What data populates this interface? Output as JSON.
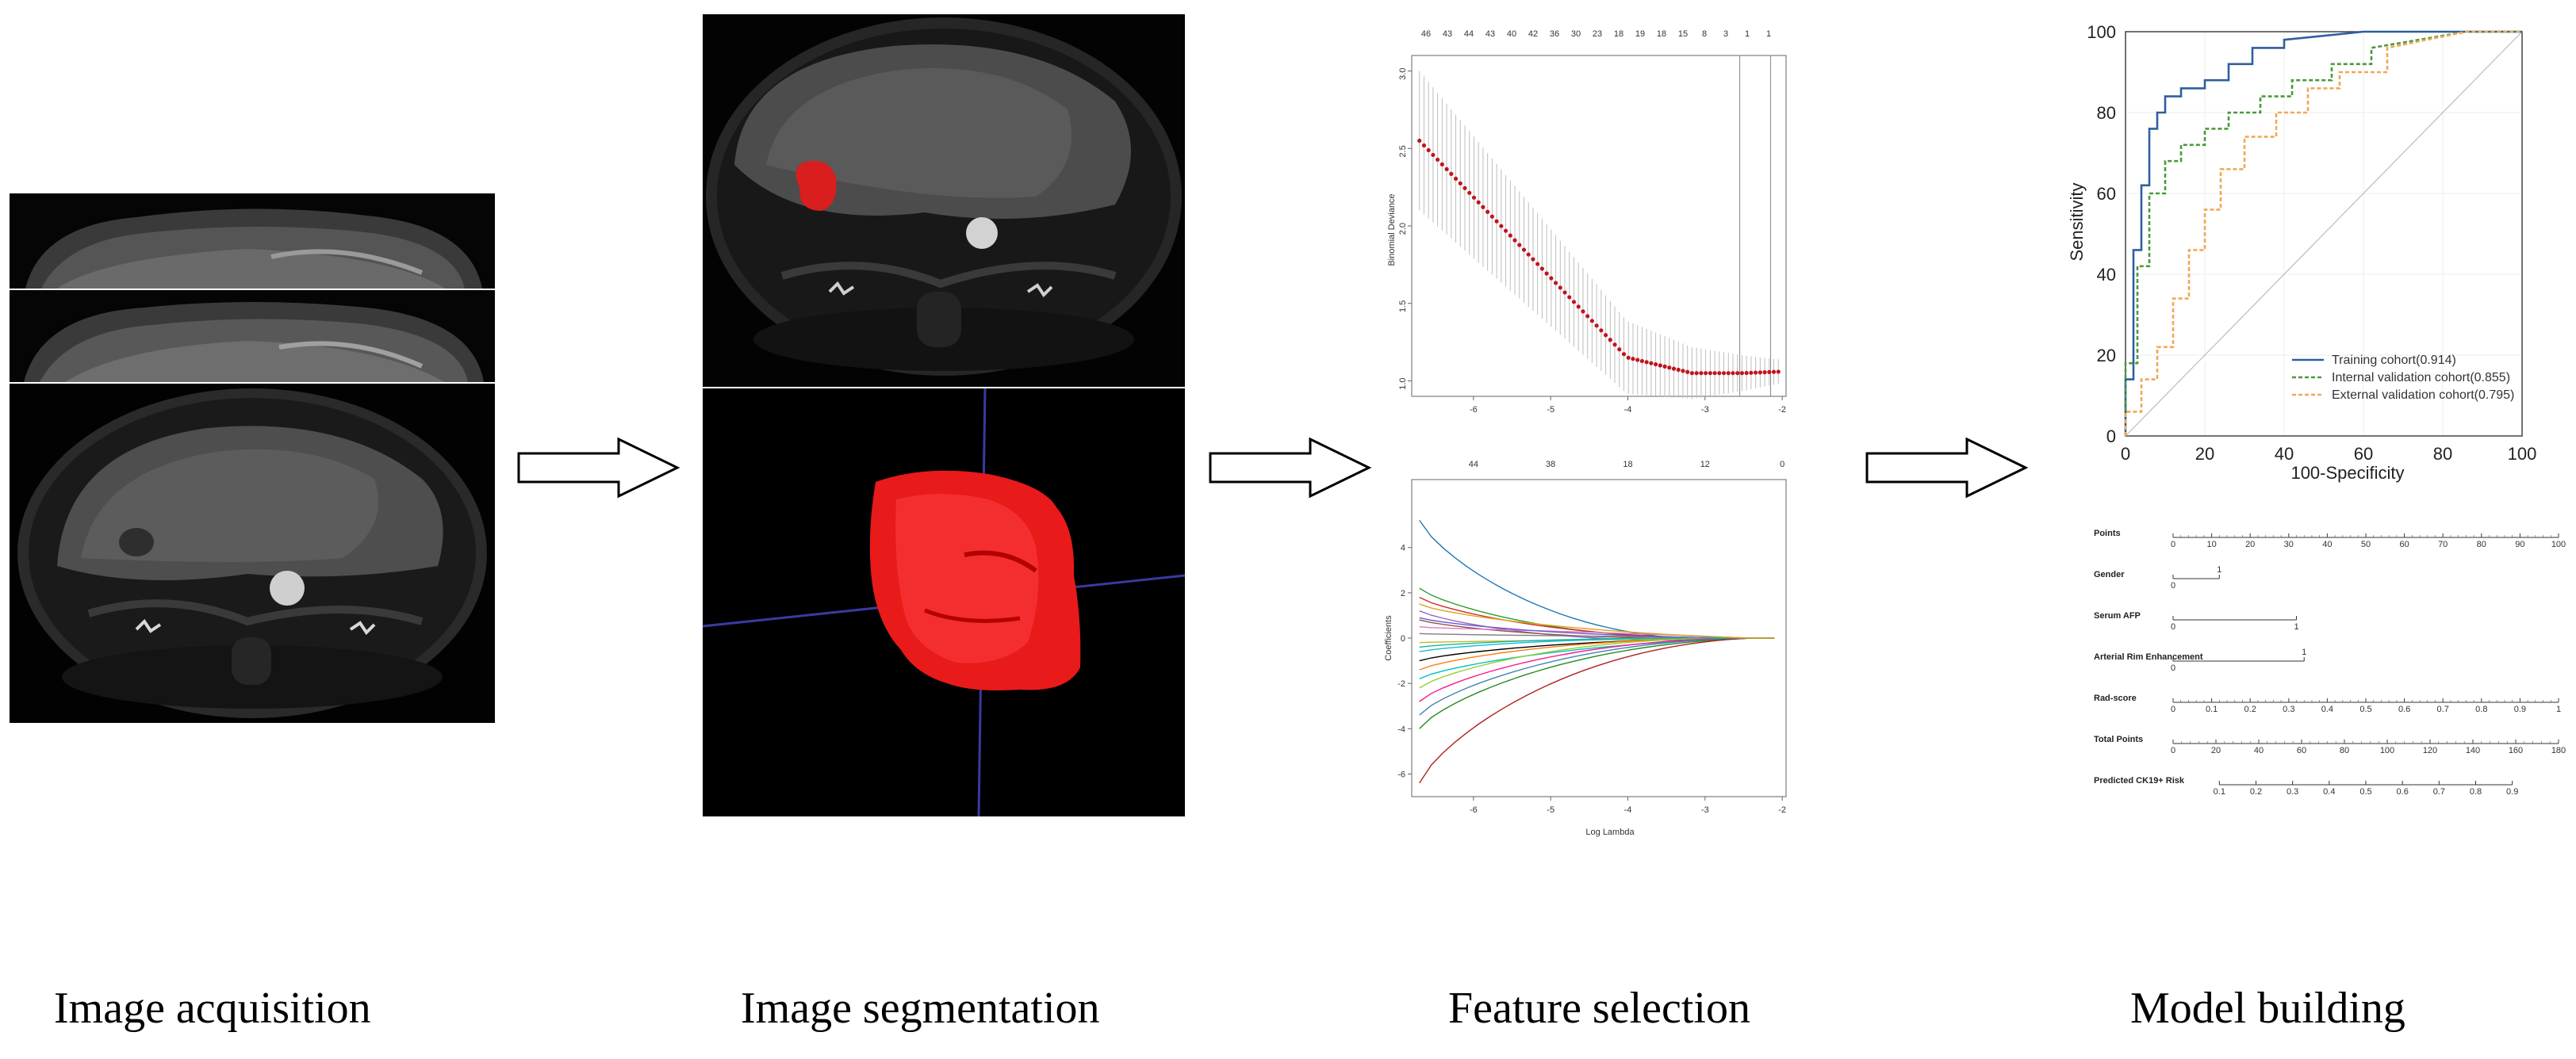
{
  "stages": [
    {
      "label": "Image acquisition"
    },
    {
      "label": "Image segmentation"
    },
    {
      "label": "Feature selection"
    },
    {
      "label": "Model building"
    }
  ],
  "lasso_deviance": {
    "ylabel": "Binomial Deviance",
    "top_ticks": [
      "46",
      "43",
      "44",
      "43",
      "40",
      "42",
      "36",
      "30",
      "23",
      "18",
      "19",
      "18",
      "15",
      "8",
      "3",
      "1",
      "1"
    ],
    "x_ticks": [
      "-6",
      "-5",
      "-4",
      "-3",
      "-2"
    ],
    "y_ticks": [
      "1.0",
      "1.5",
      "2.0",
      "2.5",
      "3.0"
    ]
  },
  "lasso_coef": {
    "ylabel": "Coefficients",
    "xlabel": "Log Lambda",
    "top_ticks": [
      "44",
      "38",
      "18",
      "12",
      "0"
    ],
    "x_ticks": [
      "-6",
      "-5",
      "-4",
      "-3",
      "-2"
    ],
    "y_ticks": [
      "-6",
      "-4",
      "-2",
      "0",
      "2",
      "4"
    ]
  },
  "chart_data": {
    "type": "line",
    "xlabel": "100-Specificity",
    "ylabel": "Sensitivity",
    "xlim": [
      0,
      100
    ],
    "ylim": [
      0,
      100
    ],
    "x_ticks": [
      "0",
      "20",
      "40",
      "60",
      "80",
      "100"
    ],
    "y_ticks": [
      "0",
      "20",
      "40",
      "60",
      "80",
      "100"
    ],
    "legend_position": "bottom-right",
    "series": [
      {
        "name": "Training cohort(0.914)",
        "color": "#2f5f9e",
        "x": [
          0,
          0,
          2,
          2,
          4,
          4,
          6,
          6,
          8,
          8,
          10,
          10,
          14,
          14,
          20,
          20,
          26,
          26,
          32,
          32,
          40,
          40,
          60,
          100
        ],
        "y": [
          0,
          14,
          14,
          46,
          46,
          62,
          62,
          76,
          76,
          80,
          80,
          84,
          84,
          86,
          86,
          88,
          88,
          92,
          92,
          96,
          96,
          98,
          100,
          100
        ]
      },
      {
        "name": "Internal validation cohort(0.855)",
        "color": "#4a9a3a",
        "x": [
          0,
          0,
          3,
          3,
          6,
          6,
          10,
          10,
          14,
          14,
          20,
          20,
          26,
          26,
          34,
          34,
          42,
          42,
          52,
          52,
          62,
          62,
          86,
          100
        ],
        "y": [
          0,
          18,
          18,
          42,
          42,
          60,
          60,
          68,
          68,
          72,
          72,
          76,
          76,
          80,
          80,
          84,
          84,
          88,
          88,
          92,
          92,
          96,
          100,
          100
        ]
      },
      {
        "name": "External validation cohort(0.795)",
        "color": "#f0a858",
        "x": [
          0,
          0,
          4,
          4,
          8,
          8,
          12,
          12,
          16,
          16,
          20,
          20,
          24,
          24,
          30,
          30,
          38,
          38,
          46,
          46,
          54,
          54,
          66,
          66,
          86,
          100
        ],
        "y": [
          0,
          6,
          6,
          14,
          14,
          22,
          22,
          34,
          34,
          46,
          46,
          56,
          56,
          66,
          66,
          74,
          74,
          80,
          80,
          86,
          86,
          90,
          90,
          96,
          100,
          100
        ]
      }
    ]
  },
  "nomogram": {
    "rows": [
      {
        "label": "Points",
        "ticks": [
          "0",
          "10",
          "20",
          "30",
          "40",
          "50",
          "60",
          "70",
          "80",
          "90",
          "100"
        ]
      },
      {
        "label": "Gender",
        "ticks": [
          "0",
          "1"
        ]
      },
      {
        "label": "Serum AFP",
        "ticks": [
          "0",
          "1"
        ]
      },
      {
        "label": "Arterial Rim Enhancement",
        "ticks": [
          "0",
          "1"
        ]
      },
      {
        "label": "Rad-score",
        "ticks": [
          "0",
          "0.1",
          "0.2",
          "0.3",
          "0.4",
          "0.5",
          "0.6",
          "0.7",
          "0.8",
          "0.9",
          "1"
        ]
      },
      {
        "label": "Total Points",
        "ticks": [
          "0",
          "20",
          "40",
          "60",
          "80",
          "100",
          "120",
          "140",
          "160",
          "180"
        ]
      },
      {
        "label": "Predicted CK19+ Risk",
        "ticks": [
          "0.1",
          "0.2",
          "0.3",
          "0.4",
          "0.5",
          "0.6",
          "0.7",
          "0.8",
          "0.9"
        ]
      }
    ]
  }
}
